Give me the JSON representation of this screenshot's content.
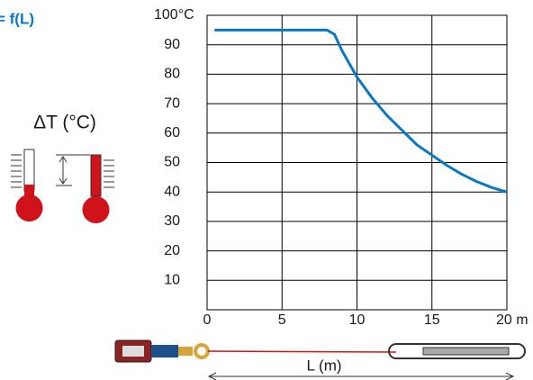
{
  "chart_data": {
    "type": "line",
    "title": "= f(L)",
    "annotation": "ΔT (°C)",
    "x_label": "L (m)",
    "x": [
      0.5,
      2,
      4,
      6,
      8,
      8.5,
      9,
      10,
      11,
      12,
      13,
      14,
      15,
      16,
      17,
      18,
      19,
      20
    ],
    "values": [
      95,
      95,
      95,
      95,
      95,
      93.5,
      88,
      79,
      72,
      66,
      61,
      56,
      52.5,
      49,
      46,
      43.5,
      41.5,
      40
    ],
    "color": "#0a77c2",
    "xlim": [
      0,
      20
    ],
    "xticks": [
      0,
      5,
      10,
      15,
      {
        "value": 20,
        "label": "20 m"
      }
    ],
    "ylim": [
      0,
      100
    ],
    "yticks": [
      10,
      20,
      30,
      40,
      50,
      60,
      70,
      80,
      90,
      {
        "value": 100,
        "label": "100°C"
      }
    ],
    "grid": true
  }
}
